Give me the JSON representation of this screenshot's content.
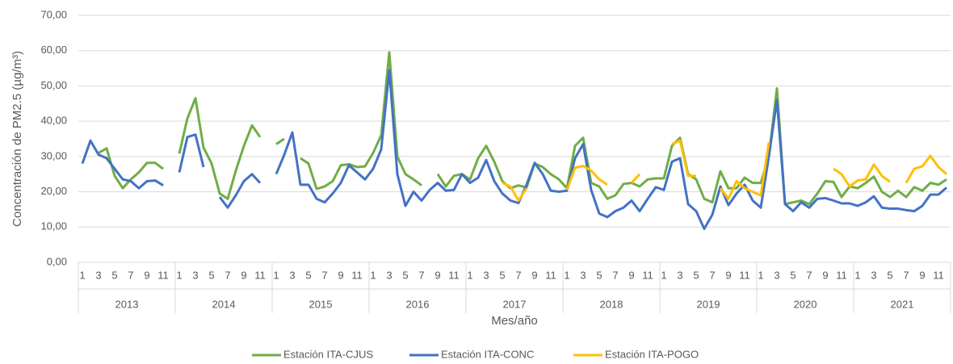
{
  "chart_data": {
    "type": "line",
    "ylabel": "Concentración de PM2.5 (µg/m³)",
    "xlabel": "Mes/año",
    "categories": [
      "1",
      null,
      "3",
      null,
      "5",
      null,
      "7",
      null,
      "9",
      null,
      "11",
      null,
      "1",
      null,
      "3",
      null,
      "5",
      null,
      "7",
      null,
      "9",
      null,
      "11",
      null,
      "1",
      null,
      "3",
      null,
      "5",
      null,
      "7",
      null,
      "9",
      null,
      "11",
      null,
      "1",
      null,
      "3",
      null,
      "5",
      null,
      "7",
      null,
      "9",
      null,
      "11",
      null,
      "1",
      null,
      "3",
      null,
      "5",
      null,
      "7",
      null,
      "9",
      null,
      "11",
      null,
      "1",
      null,
      "3",
      null,
      "5",
      null,
      "7",
      null,
      "9",
      null,
      "11",
      null,
      "1",
      null,
      "3",
      null,
      "5",
      null,
      "7",
      null,
      "9",
      null,
      "11",
      null,
      "1",
      null,
      "3",
      null,
      "5",
      null,
      "7",
      null,
      "9",
      null,
      "11",
      null,
      "1",
      null,
      "3",
      null,
      "5",
      null,
      "7",
      null,
      "9",
      null,
      "11",
      null
    ],
    "groups": [
      "2013",
      "2014",
      "2015",
      "2016",
      "2017",
      "2018",
      "2019",
      "2020",
      "2021"
    ],
    "ylim": [
      0,
      70
    ],
    "yticks": [
      {
        "value": 0,
        "label": "0,00"
      },
      {
        "value": 10,
        "label": "10,00"
      },
      {
        "value": 20,
        "label": "20,00"
      },
      {
        "value": 30,
        "label": "30,00"
      },
      {
        "value": 40,
        "label": "40,00"
      },
      {
        "value": 50,
        "label": "50,00"
      },
      {
        "value": 60,
        "label": "60,00"
      },
      {
        "value": 70,
        "label": "70,00"
      }
    ],
    "grid": true,
    "legend": "bottom",
    "series": [
      {
        "name": "Estación ITA-CJUS",
        "color": "#70ad47",
        "values": [
          null,
          null,
          31,
          32.3,
          24.5,
          21,
          23.5,
          25.5,
          28.2,
          28.2,
          26.5,
          null,
          30.8,
          40.8,
          46.5,
          32.5,
          28,
          19.5,
          18,
          26,
          33,
          38.8,
          35.5,
          null,
          33.5,
          35,
          null,
          29.5,
          28,
          20.8,
          21.5,
          23,
          27.5,
          27.8,
          27,
          27.2,
          31,
          36,
          59.5,
          30,
          25,
          23.5,
          21.8,
          null,
          25,
          21.5,
          24.5,
          25,
          23.5,
          29.5,
          33,
          28.5,
          23,
          21,
          21.8,
          21.2,
          28,
          27,
          25,
          23.5,
          21,
          33,
          35.3,
          22.5,
          21.5,
          18,
          19,
          22.2,
          22.5,
          21.5,
          23.5,
          23.8,
          23.8,
          33,
          35.3,
          25,
          23.5,
          18,
          17,
          25.8,
          21,
          21,
          24,
          22.5,
          22.5,
          30,
          49.3,
          16.5,
          17,
          17.5,
          16.5,
          19.5,
          23,
          22.8,
          18.5,
          21.5,
          21,
          22.5,
          24.3,
          20,
          18.5,
          20.3,
          18.5,
          21.3,
          20.3,
          22.5,
          22,
          23.5
        ]
      },
      {
        "name": "Estación ITA-CONC",
        "color": "#4472c4",
        "values": [
          28,
          34.5,
          30.5,
          29.5,
          26.5,
          23.5,
          23,
          21,
          23,
          23.2,
          21.8,
          null,
          25.5,
          35.5,
          36.2,
          27,
          null,
          18.5,
          15.5,
          19,
          23,
          25,
          22.5,
          null,
          25,
          30.5,
          36.8,
          22,
          22,
          18,
          17,
          19.5,
          22.5,
          27.5,
          25.5,
          23.5,
          26.5,
          32,
          54.5,
          25,
          16,
          20,
          17.5,
          20.5,
          22.5,
          20.3,
          20.5,
          25,
          22.5,
          24,
          29,
          23,
          19.5,
          17.5,
          16.8,
          22,
          28.2,
          25,
          20.3,
          20,
          20.3,
          29.5,
          33.5,
          20.5,
          13.8,
          12.8,
          14.5,
          15.5,
          17.5,
          14.5,
          18,
          21.3,
          20.5,
          28.5,
          29.5,
          16.5,
          14.5,
          9.5,
          13.5,
          21.5,
          16.2,
          19.5,
          22,
          17.5,
          15.5,
          30,
          46,
          16.5,
          14.5,
          17,
          15.5,
          18,
          18.2,
          17.5,
          16.7,
          16.7,
          16,
          17,
          18.7,
          15.5,
          15.2,
          15.2,
          14.8,
          14.5,
          16,
          19.2,
          19.2,
          21.2
        ]
      },
      {
        "name": "Estación ITA-POGO",
        "color": "#ffc000",
        "values": [
          null,
          null,
          null,
          null,
          null,
          null,
          null,
          null,
          null,
          null,
          null,
          null,
          null,
          null,
          null,
          null,
          null,
          null,
          null,
          null,
          null,
          null,
          null,
          null,
          null,
          null,
          null,
          null,
          null,
          null,
          null,
          null,
          null,
          null,
          null,
          null,
          null,
          null,
          null,
          null,
          null,
          null,
          null,
          null,
          null,
          null,
          null,
          null,
          null,
          null,
          null,
          null,
          22.5,
          21.5,
          17.5,
          21,
          null,
          null,
          null,
          null,
          20.5,
          26.8,
          27.3,
          26,
          23.5,
          22,
          null,
          null,
          22.5,
          25,
          null,
          null,
          null,
          33.5,
          34.5,
          24.5,
          24.5,
          null,
          null,
          21,
          18,
          23,
          21,
          20,
          19,
          34,
          null,
          null,
          null,
          null,
          null,
          null,
          null,
          26.5,
          25,
          21.5,
          23.2,
          23.5,
          27.7,
          24.5,
          22.8,
          null,
          22.5,
          26.5,
          27.2,
          30.2,
          27,
          25
        ]
      }
    ]
  }
}
